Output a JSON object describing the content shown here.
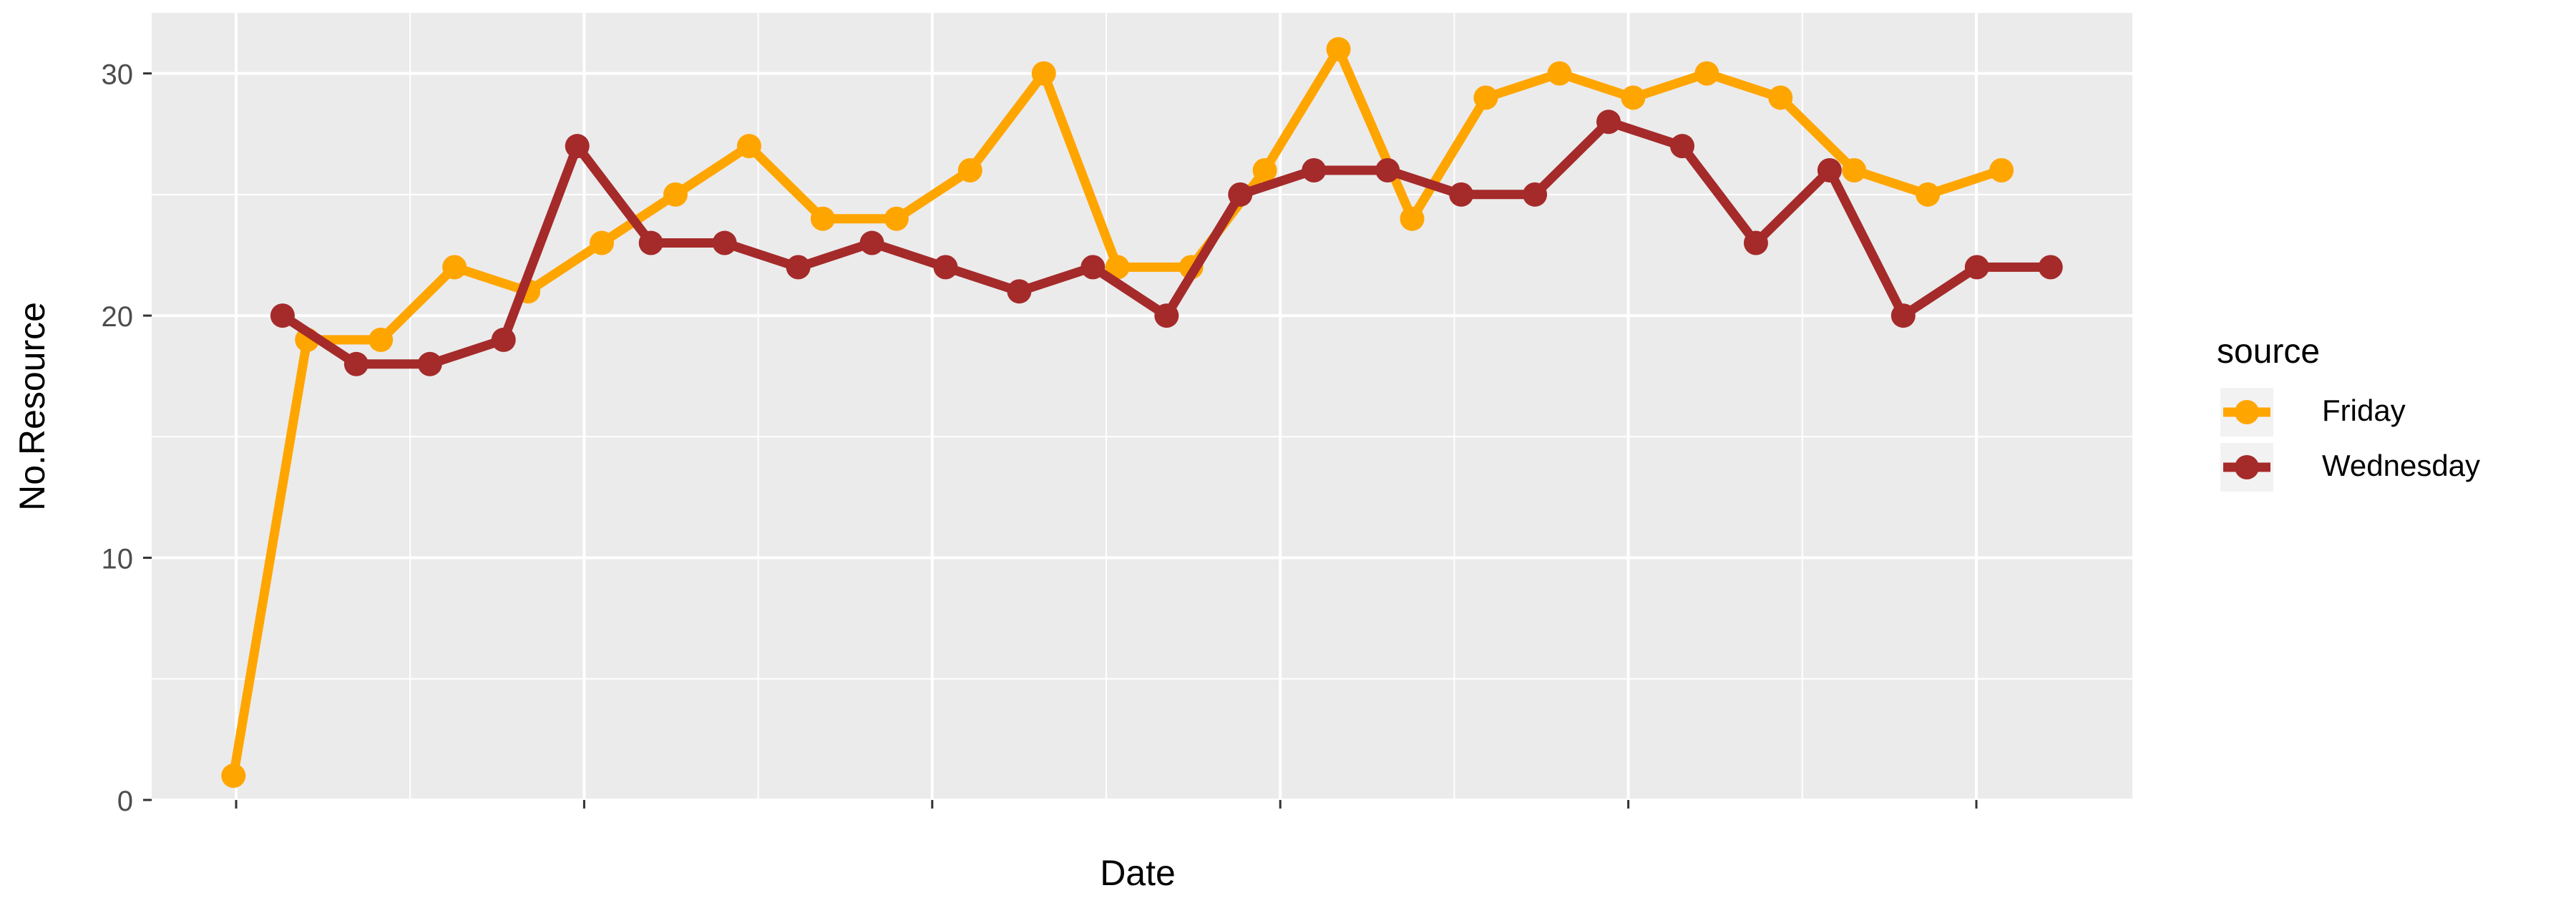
{
  "chart_data": {
    "type": "line",
    "title": "",
    "xlabel": "Date",
    "ylabel": "No.Resource",
    "ylim": [
      0,
      32.5
    ],
    "y_ticks": [
      0,
      10,
      20,
      30
    ],
    "x_tick_labels": [
      "",
      "",
      "",
      "",
      "",
      ""
    ],
    "grid": true,
    "legend": {
      "title": "source",
      "position": "right"
    },
    "series": [
      {
        "name": "Friday",
        "color": "#FFA500",
        "x": [
          1,
          4,
          7,
          10,
          13,
          16,
          19,
          22,
          25,
          28,
          31,
          34,
          37,
          40,
          43,
          46,
          49,
          52,
          55,
          58,
          61,
          64,
          67,
          70,
          73
        ],
        "values": [
          1,
          19,
          19,
          22,
          21,
          23,
          25,
          27,
          24,
          24,
          26,
          30,
          22,
          22,
          26,
          31,
          24,
          29,
          30,
          29,
          30,
          29,
          26,
          25,
          26
        ]
      },
      {
        "name": "Wednesday",
        "color": "#A52A2A",
        "x": [
          3,
          6,
          9,
          12,
          15,
          18,
          21,
          24,
          27,
          30,
          33,
          36,
          39,
          42,
          45,
          48,
          51,
          54,
          57,
          60,
          63,
          66,
          69,
          72,
          75
        ],
        "values": [
          20,
          18,
          18,
          19,
          27,
          23,
          23,
          22,
          23,
          22,
          21,
          22,
          20,
          25,
          26,
          26,
          25,
          25,
          28,
          27,
          23,
          26,
          20,
          22,
          22
        ]
      }
    ]
  }
}
